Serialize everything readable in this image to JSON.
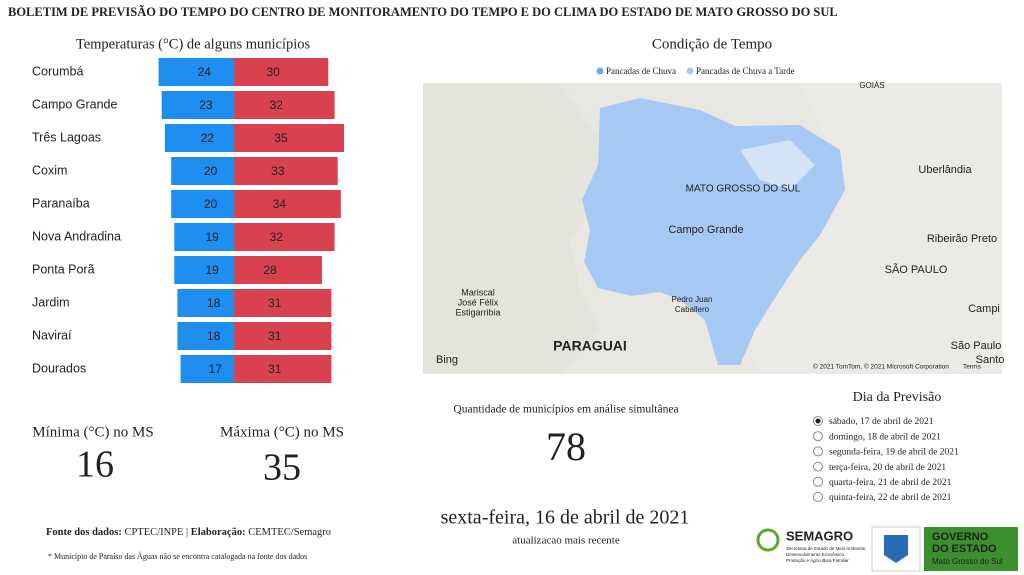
{
  "title": "BOLETIM DE PREVISÃO DO TEMPO DO CENTRO DE MONITORAMENTO DO TEMPO E DO CLIMA DO ESTADO DE MATO GROSSO DO SUL",
  "chart_data": {
    "type": "bar",
    "title": "Temperaturas (°C) de alguns municípios",
    "categories": [
      "Corumbá",
      "Campo Grande",
      "Três Lagoas",
      "Coxim",
      "Paranaíba",
      "Nova Andradina",
      "Ponta Porã",
      "Jardim",
      "Naviraí",
      "Dourados"
    ],
    "series": [
      {
        "color": "#1f8ef1",
        "values": [
          24,
          23,
          22,
          20,
          20,
          19,
          19,
          18,
          18,
          17
        ]
      },
      {
        "color": "#d9414f",
        "values": [
          30,
          32,
          35,
          33,
          34,
          32,
          28,
          31,
          31,
          31
        ]
      }
    ]
  },
  "summary": {
    "min_label": "Mínima (°C) no MS",
    "min_value": 16,
    "max_label": "Máxima (°C) no MS",
    "max_value": 35
  },
  "source": {
    "label": "Fonte dos dados:",
    "text": "CPTEC/INPE | ",
    "label2": "Elaboração:",
    "text2": "CEMTEC/Semagro",
    "note": "* Município de Paraíso das Águas não se encontra catalogada na fonte dos dados"
  },
  "map": {
    "title": "Condição de Tempo",
    "legend": [
      {
        "name": "Pancadas de Chuva",
        "color": "#6aaaf0"
      },
      {
        "name": "Pancadas de Chuva a Tarde",
        "color": "#a6c9f3"
      }
    ],
    "labels": [
      "GOIÁS",
      "Uberlândia",
      "MATO GROSSO DO SUL",
      "Campo Grande",
      "Ribeirão Preto",
      "SÃO PAULO",
      "Campi",
      "São Paulo",
      "Santo",
      "Mariscal",
      "José Félix",
      "Estigarribia",
      "PARAGUAI",
      "Pedro Juan",
      "Caballero"
    ],
    "brand": "Bing",
    "credits": "© 2021 TomTom, © 2021 Microsoft Corporation",
    "terms": "Terms"
  },
  "count": {
    "label": "Quantidade de municípios em análise simultânea",
    "value": 78
  },
  "updated": {
    "date": "sexta-feira, 16 de abril de 2021",
    "label": "atualizacao mais recente"
  },
  "forecast_days": {
    "title": "Dia da Previsão",
    "selected": 0,
    "options": [
      "sábado, 17 de abril de 2021",
      "domingo, 18 de abril de 2021",
      "segunda-feira, 19 de abril de 2021",
      "terça-feira, 20 de abril de 2021",
      "quarta-feira, 21 de abril de 2021",
      "quinta-feira, 22 de abril de 2021"
    ]
  },
  "logos": {
    "semagro": "SEMAGRO",
    "semagro_sub": [
      "Secretaria de Estado de Meio Ambiente,",
      "Desenvolvimento Econômico,",
      "Produção e Agricultura Familiar"
    ],
    "gov": [
      "GOVERNO",
      "DO ESTADO"
    ],
    "gov_sub": "Mato Grosso do Sul"
  }
}
